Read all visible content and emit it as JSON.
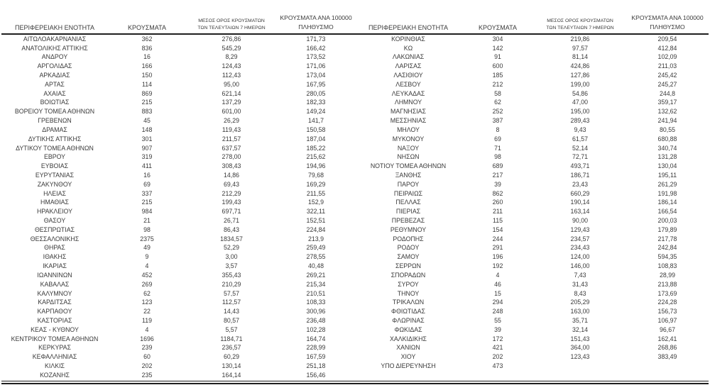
{
  "colors": {
    "background": "#ffffff",
    "text": "#3a3a3a",
    "rule_line": "#1f1f1f"
  },
  "table": {
    "headers": {
      "region": "ΠΕΡΙΦΕΡΕΙΑΚΗ ΕΝΟΤΗΤΑ",
      "cases": "ΚΡΟΥΣΜΑΤΑ",
      "avg7_line1": "ΜΕΣΟΣ ΟΡΟΣ ΚΡΟΥΣΜΑΤΩΝ",
      "avg7_line2": "ΤΩΝ ΤΕΛΕΥΤΑΙΩΝ 7 ΗΜΕΡΩΝ",
      "per100k_line1": "ΚΡΟΥΣΜΑΤΑ ΑΝΑ 100000",
      "per100k_line2": "ΠΛΗΘΥΣΜΟ"
    },
    "left_rows": [
      [
        "ΑΙΤΩΛΟΑΚΑΡΝΑΝΙΑΣ",
        "362",
        "276,86",
        "171,73"
      ],
      [
        "ΑΝΑΤΟΛΙΚΗΣ ΑΤΤΙΚΗΣ",
        "836",
        "545,29",
        "166,42"
      ],
      [
        "ΑΝΔΡΟΥ",
        "16",
        "8,29",
        "173,52"
      ],
      [
        "ΑΡΓΟΛΙΔΑΣ",
        "166",
        "124,43",
        "171,06"
      ],
      [
        "ΑΡΚΑΔΙΑΣ",
        "150",
        "112,43",
        "173,04"
      ],
      [
        "ΑΡΤΑΣ",
        "114",
        "95,00",
        "167,95"
      ],
      [
        "ΑΧΑΪΑΣ",
        "869",
        "621,14",
        "280,05"
      ],
      [
        "ΒΟΙΩΤΙΑΣ",
        "215",
        "137,29",
        "182,33"
      ],
      [
        "ΒΟΡΕΙΟΥ ΤΟΜΕΑ ΑΘΗΝΩΝ",
        "883",
        "601,00",
        "149,24"
      ],
      [
        "ΓΡΕΒΕΝΩΝ",
        "45",
        "26,29",
        "141,7"
      ],
      [
        "ΔΡΑΜΑΣ",
        "148",
        "119,43",
        "150,58"
      ],
      [
        "ΔΥΤΙΚΗΣ ΑΤΤΙΚΗΣ",
        "301",
        "211,57",
        "187,04"
      ],
      [
        "ΔΥΤΙΚΟΥ ΤΟΜΕΑ ΑΘΗΝΩΝ",
        "907",
        "637,57",
        "185,22"
      ],
      [
        "ΕΒΡΟΥ",
        "319",
        "278,00",
        "215,62"
      ],
      [
        "ΕΥΒΟΙΑΣ",
        "411",
        "308,43",
        "194,96"
      ],
      [
        "ΕΥΡΥΤΑΝΙΑΣ",
        "16",
        "14,86",
        "79,68"
      ],
      [
        "ΖΑΚΥΝΘΟΥ",
        "69",
        "69,43",
        "169,29"
      ],
      [
        "ΗΛΕΙΑΣ",
        "337",
        "212,29",
        "211,55"
      ],
      [
        "ΗΜΑΘΙΑΣ",
        "215",
        "199,43",
        "152,9"
      ],
      [
        "ΗΡΑΚΛΕΙΟΥ",
        "984",
        "697,71",
        "322,11"
      ],
      [
        "ΘΑΣΟΥ",
        "21",
        "26,71",
        "152,51"
      ],
      [
        "ΘΕΣΠΡΩΤΙΑΣ",
        "98",
        "86,43",
        "224,84"
      ],
      [
        "ΘΕΣΣΑΛΟΝΙΚΗΣ",
        "2375",
        "1834,57",
        "213,9"
      ],
      [
        "ΘΗΡΑΣ",
        "49",
        "52,29",
        "259,49"
      ],
      [
        "ΙΘΑΚΗΣ",
        "9",
        "3,00",
        "278,55"
      ],
      [
        "ΙΚΑΡΙΑΣ",
        "4",
        "3,57",
        "40,48"
      ],
      [
        "ΙΩΑΝΝΙΝΩΝ",
        "452",
        "355,43",
        "269,21"
      ],
      [
        "ΚΑΒΑΛΑΣ",
        "269",
        "210,29",
        "215,34"
      ],
      [
        "ΚΑΛΥΜΝΟΥ",
        "62",
        "57,57",
        "210,51"
      ],
      [
        "ΚΑΡΔΙΤΣΑΣ",
        "123",
        "112,57",
        "108,33"
      ],
      [
        "ΚΑΡΠΑΘΟΥ",
        "22",
        "14,43",
        "300,96"
      ],
      [
        "ΚΑΣΤΟΡΙΑΣ",
        "119",
        "80,57",
        "236,48"
      ],
      [
        "ΚΕΑΣ - ΚΥΘΝΟΥ",
        "4",
        "5,57",
        "102,28"
      ],
      [
        "ΚΕΝΤΡΙΚΟΥ ΤΟΜΕΑ ΑΘΗΝΩΝ",
        "1696",
        "1184,71",
        "164,74"
      ],
      [
        "ΚΕΡΚΥΡΑΣ",
        "239",
        "236,57",
        "228,99"
      ],
      [
        "ΚΕΦΑΛΛΗΝΙΑΣ",
        "60",
        "60,29",
        "167,59"
      ],
      [
        "ΚΙΛΚΙΣ",
        "202",
        "130,14",
        "251,18"
      ],
      [
        "ΚΟΖΑΝΗΣ",
        "235",
        "164,14",
        "156,46"
      ]
    ],
    "right_rows": [
      [
        "ΚΟΡΙΝΘΙΑΣ",
        "304",
        "219,86",
        "209,54"
      ],
      [
        "ΚΩ",
        "142",
        "97,57",
        "412,84"
      ],
      [
        "ΛΑΚΩΝΙΑΣ",
        "91",
        "81,14",
        "102,09"
      ],
      [
        "ΛΑΡΙΣΑΣ",
        "600",
        "424,86",
        "211,03"
      ],
      [
        "ΛΑΣΙΘΙΟΥ",
        "185",
        "127,86",
        "245,42"
      ],
      [
        "ΛΕΣΒΟΥ",
        "212",
        "199,00",
        "245,27"
      ],
      [
        "ΛΕΥΚΑΔΑΣ",
        "58",
        "54,86",
        "244,8"
      ],
      [
        "ΛΗΜΝΟΥ",
        "62",
        "47,00",
        "359,17"
      ],
      [
        "ΜΑΓΝΗΣΙΑΣ",
        "252",
        "195,00",
        "132,62"
      ],
      [
        "ΜΕΣΣΗΝΙΑΣ",
        "387",
        "289,43",
        "241,94"
      ],
      [
        "ΜΗΛΟΥ",
        "8",
        "9,43",
        "80,55"
      ],
      [
        "ΜΥΚΟΝΟΥ",
        "69",
        "61,57",
        "680,88"
      ],
      [
        "ΝΑΞΟΥ",
        "71",
        "52,14",
        "340,74"
      ],
      [
        "ΝΗΣΩΝ",
        "98",
        "72,71",
        "131,28"
      ],
      [
        "ΝΟΤΙΟΥ ΤΟΜΕΑ ΑΘΗΝΩΝ",
        "689",
        "493,71",
        "130,04"
      ],
      [
        "ΞΑΝΘΗΣ",
        "217",
        "186,71",
        "195,11"
      ],
      [
        "ΠΑΡΟΥ",
        "39",
        "23,43",
        "261,29"
      ],
      [
        "ΠΕΙΡΑΙΩΣ",
        "862",
        "660,29",
        "191,98"
      ],
      [
        "ΠΕΛΛΑΣ",
        "260",
        "190,14",
        "186,14"
      ],
      [
        "ΠΙΕΡΙΑΣ",
        "211",
        "163,14",
        "166,54"
      ],
      [
        "ΠΡΕΒΕΖΑΣ",
        "115",
        "90,00",
        "200,03"
      ],
      [
        "ΡΕΘΥΜΝΟΥ",
        "154",
        "129,43",
        "179,89"
      ],
      [
        "ΡΟΔΟΠΗΣ",
        "244",
        "234,57",
        "217,78"
      ],
      [
        "ΡΟΔΟΥ",
        "291",
        "234,43",
        "242,84"
      ],
      [
        "ΣΑΜΟΥ",
        "196",
        "124,00",
        "594,35"
      ],
      [
        "ΣΕΡΡΩΝ",
        "192",
        "146,00",
        "108,83"
      ],
      [
        "ΣΠΟΡΑΔΩΝ",
        "4",
        "7,43",
        "28,99"
      ],
      [
        "ΣΥΡΟΥ",
        "46",
        "31,43",
        "213,88"
      ],
      [
        "ΤΗΝΟΥ",
        "15",
        "8,43",
        "173,69"
      ],
      [
        "ΤΡΙΚΑΛΩΝ",
        "294",
        "205,29",
        "224,28"
      ],
      [
        "ΦΘΙΩΤΙΔΑΣ",
        "248",
        "163,00",
        "156,73"
      ],
      [
        "ΦΛΩΡΙΝΑΣ",
        "55",
        "35,71",
        "106,97"
      ],
      [
        "ΦΩΚΙΔΑΣ",
        "39",
        "32,14",
        "96,67"
      ],
      [
        "ΧΑΛΚΙΔΙΚΗΣ",
        "172",
        "151,43",
        "162,41"
      ],
      [
        "ΧΑΝΙΩΝ",
        "421",
        "364,00",
        "268,86"
      ],
      [
        "ΧΙΟΥ",
        "202",
        "123,43",
        "383,49"
      ],
      [
        "ΥΠΟ ΔΙΕΡΕΥΝΗΣΗ",
        "473",
        "",
        ""
      ],
      [
        "",
        "",
        "",
        ""
      ]
    ]
  }
}
